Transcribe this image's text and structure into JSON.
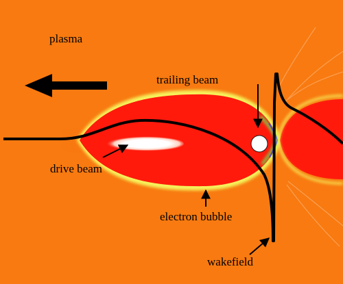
{
  "figure": {
    "labels": {
      "plasma": "plasma",
      "trailing_beam": "trailing beam",
      "drive_beam": "drive beam",
      "electron_bubble": "electron bubble",
      "wakefield": "wakefield"
    },
    "colors": {
      "plasma_background": "#f87a10",
      "bubble": "#ff1a0c",
      "bubble_sheath": "#f6f25a",
      "sheath_edge": "#6fd94a",
      "drive_beam_core": "#ffffff",
      "trailing_beam": "#ffffff",
      "wakefield_line": "#000000",
      "arrow": "#000000",
      "label_text": "#000000"
    }
  }
}
